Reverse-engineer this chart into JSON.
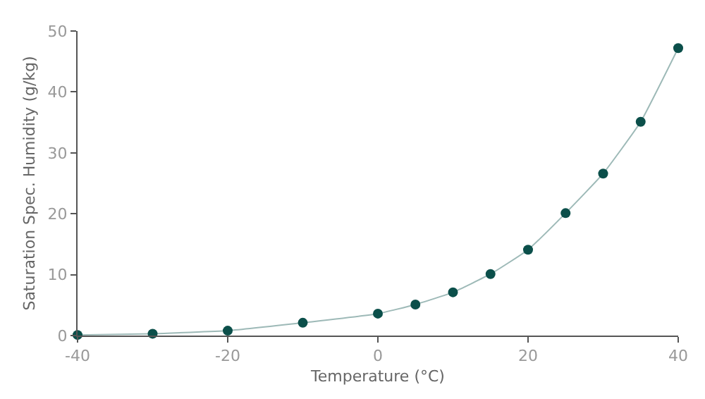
{
  "chart_data": {
    "type": "line",
    "xlabel": "Temperature (°C)",
    "ylabel": "Saturation Spec. Humidity (g/kg)",
    "x": [
      -40,
      -30,
      -20,
      -10,
      0,
      5,
      10,
      15,
      20,
      25,
      30,
      35,
      40
    ],
    "series": [
      {
        "color": "#0b4f4a",
        "values": [
          0.1,
          0.3,
          0.8,
          2.1,
          3.6,
          5.1,
          7.1,
          10.1,
          14.1,
          20.1,
          26.6,
          35.1,
          47.2
        ]
      }
    ],
    "xlim": [
      -40,
      40
    ],
    "xticks": [
      -40,
      -20,
      0,
      20,
      40
    ],
    "ylim": [
      0,
      50
    ],
    "yticks": [
      0,
      10,
      20,
      30,
      40,
      50
    ],
    "grid": false,
    "legend": false,
    "marker": "circle",
    "line_style": "solid"
  }
}
